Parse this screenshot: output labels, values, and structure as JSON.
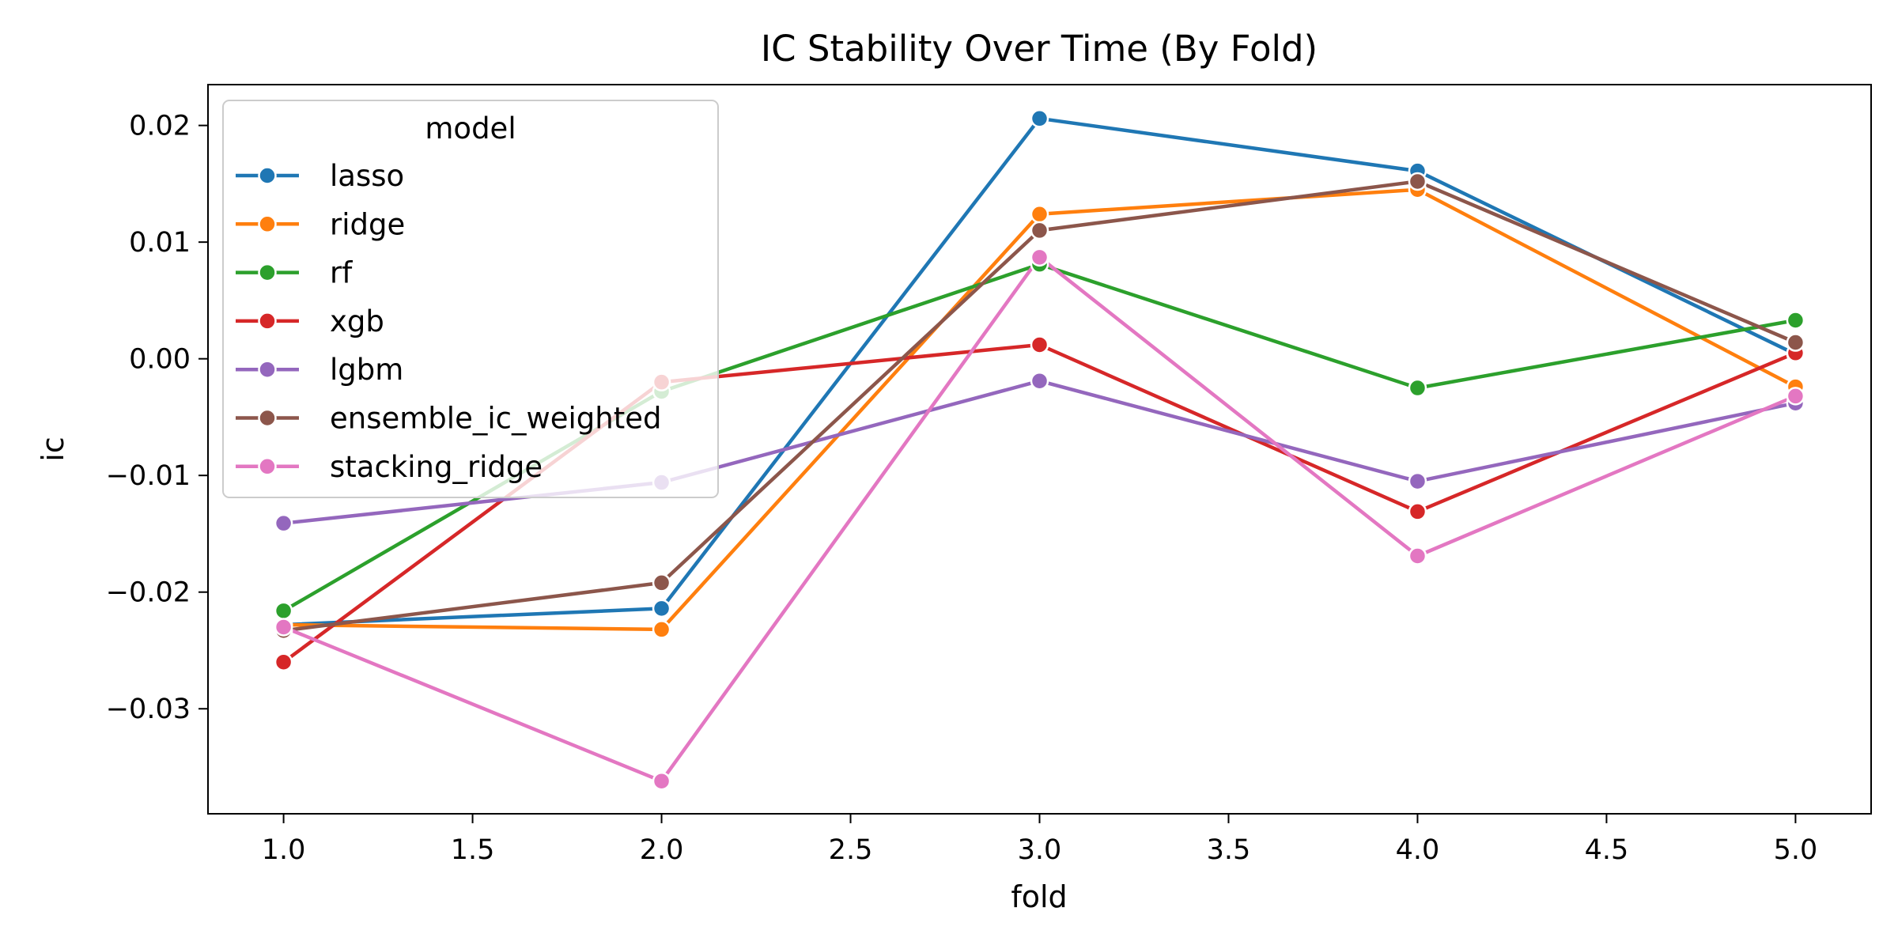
{
  "chart_data": {
    "type": "line",
    "title": "IC Stability Over Time (By Fold)",
    "xlabel": "fold",
    "ylabel": "ic",
    "xlim": [
      0.8,
      5.2
    ],
    "ylim": [
      -0.039,
      0.0235
    ],
    "xticks": [
      1.0,
      1.5,
      2.0,
      2.5,
      3.0,
      3.5,
      4.0,
      4.5,
      5.0
    ],
    "xtick_labels": [
      "1.0",
      "1.5",
      "2.0",
      "2.5",
      "3.0",
      "3.5",
      "4.0",
      "4.5",
      "5.0"
    ],
    "yticks": [
      0.02,
      0.01,
      0.0,
      -0.01,
      -0.02,
      -0.03
    ],
    "ytick_labels": [
      "0.02",
      "0.01",
      "0.00",
      "−0.01",
      "−0.02",
      "−0.03"
    ],
    "grid": false,
    "legend": {
      "title": "model",
      "placement": "top-left"
    },
    "x": [
      1,
      2,
      3,
      4,
      5
    ],
    "series": [
      {
        "name": "lasso",
        "color": "#1f77b4",
        "values": [
          -0.0228,
          -0.0214,
          0.0206,
          0.0161,
          0.0004
        ]
      },
      {
        "name": "ridge",
        "color": "#ff7f0e",
        "values": [
          -0.0228,
          -0.0232,
          0.0124,
          0.0145,
          -0.0024
        ]
      },
      {
        "name": "rf",
        "color": "#2ca02c",
        "values": [
          -0.0216,
          -0.0028,
          0.0081,
          -0.0025,
          0.0033
        ]
      },
      {
        "name": "xgb",
        "color": "#d62728",
        "values": [
          -0.026,
          -0.002,
          0.0012,
          -0.0131,
          0.0005
        ]
      },
      {
        "name": "lgbm",
        "color": "#9467bd",
        "values": [
          -0.0141,
          -0.0106,
          -0.0019,
          -0.0105,
          -0.0038
        ]
      },
      {
        "name": "ensemble_ic_weighted",
        "color": "#8c564b",
        "values": [
          -0.0233,
          -0.0192,
          0.011,
          0.0152,
          0.0014
        ]
      },
      {
        "name": "stacking_ridge",
        "color": "#e377c2",
        "values": [
          -0.023,
          -0.0362,
          0.0087,
          -0.0169,
          -0.0032
        ]
      }
    ]
  }
}
